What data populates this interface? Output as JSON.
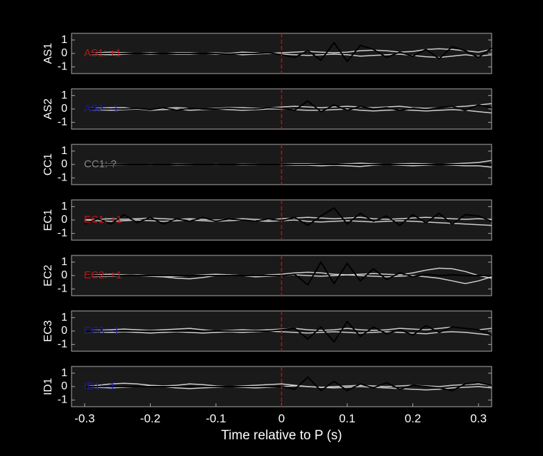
{
  "chart_data": [
    {
      "type": "line",
      "ylabel": "AS1",
      "annotation": "AS1: +1",
      "annotation_color": "#cc1111",
      "x": [
        -0.3,
        -0.28,
        -0.26,
        -0.24,
        -0.22,
        -0.2,
        -0.18,
        -0.16,
        -0.14,
        -0.12,
        -0.1,
        -0.08,
        -0.06,
        -0.04,
        -0.02,
        0,
        0.02,
        0.04,
        0.06,
        0.08,
        0.1,
        0.12,
        0.14,
        0.16,
        0.18,
        0.2,
        0.22,
        0.24,
        0.26,
        0.28,
        0.3,
        0.32
      ],
      "series": [
        {
          "color": "#d0d0d0",
          "values": [
            0,
            0.05,
            0.1,
            0.05,
            0,
            -0.05,
            0,
            0.05,
            0.05,
            0,
            -0.05,
            0,
            0.1,
            0.05,
            0,
            0.05,
            0.1,
            0.15,
            0.1,
            0.05,
            0.1,
            0.2,
            0.25,
            0.2,
            0.1,
            0.15,
            0.3,
            0.35,
            0.3,
            0.2,
            0.1,
            0.3
          ]
        },
        {
          "color": "#d0d0d0",
          "values": [
            0,
            -0.05,
            -0.1,
            -0.05,
            0,
            0.05,
            0,
            -0.05,
            -0.05,
            0,
            0.05,
            0,
            -0.1,
            -0.05,
            0,
            -0.05,
            -0.1,
            -0.15,
            -0.1,
            -0.05,
            -0.1,
            -0.2,
            -0.15,
            -0.1,
            -0.05,
            -0.15,
            -0.25,
            -0.3,
            -0.2,
            -0.1,
            -0.2,
            -0.1
          ]
        },
        {
          "color": "#000000",
          "values": [
            0,
            0,
            0,
            0,
            0,
            0,
            0,
            0,
            0,
            0,
            0,
            -0.05,
            0,
            0,
            0.05,
            -0.1,
            -0.3,
            0.2,
            -0.5,
            0.8,
            -0.6,
            0.6,
            0.3,
            -0.3,
            0.1,
            -0.2,
            0.3,
            -0.4,
            0.5,
            0.2,
            -0.3,
            0.4
          ]
        }
      ],
      "ylim": [
        -1.5,
        1.5
      ],
      "yticks": [
        -1,
        0,
        1
      ],
      "xlim": [
        -0.32,
        0.32
      ],
      "reference_x": 0,
      "reference_color": "#dd0000"
    },
    {
      "type": "line",
      "ylabel": "AS2",
      "annotation": "AS2: -1",
      "annotation_color": "#1a1aaa",
      "x": [
        -0.3,
        -0.28,
        -0.26,
        -0.24,
        -0.22,
        -0.2,
        -0.18,
        -0.16,
        -0.14,
        -0.12,
        -0.1,
        -0.08,
        -0.06,
        -0.04,
        -0.02,
        0,
        0.02,
        0.04,
        0.06,
        0.08,
        0.1,
        0.12,
        0.14,
        0.16,
        0.18,
        0.2,
        0.22,
        0.24,
        0.26,
        0.28,
        0.3,
        0.32
      ],
      "series": [
        {
          "color": "#d0d0d0",
          "values": [
            0,
            0.05,
            0.1,
            0.1,
            0,
            -0.05,
            0.05,
            0.1,
            0.05,
            0,
            0.05,
            0.1,
            0.1,
            0.05,
            0.1,
            0.15,
            0.2,
            0.15,
            0.1,
            0.15,
            0.2,
            0.15,
            0.1,
            0.15,
            0.2,
            0.1,
            0.05,
            0.1,
            0.15,
            0.2,
            0.3,
            0.4
          ]
        },
        {
          "color": "#d0d0d0",
          "values": [
            0,
            -0.05,
            -0.1,
            -0.05,
            0,
            -0.1,
            -0.05,
            0,
            -0.1,
            -0.05,
            0,
            -0.05,
            -0.1,
            -0.05,
            0,
            0,
            -0.05,
            -0.1,
            -0.1,
            -0.05,
            0,
            -0.1,
            -0.15,
            -0.1,
            -0.05,
            -0.1,
            -0.15,
            -0.1,
            -0.05,
            -0.1,
            -0.2,
            -0.3
          ]
        },
        {
          "color": "#000000",
          "values": [
            0,
            0,
            0,
            0,
            0.05,
            -0.05,
            0.1,
            -0.1,
            0.05,
            0,
            0,
            0.05,
            0,
            0,
            0.1,
            0.05,
            -0.1,
            0.6,
            -0.2,
            0.3,
            -0.1,
            0.2,
            0,
            0.1,
            -0.1,
            0.05,
            -0.05,
            0.1,
            0.2,
            -0.1,
            0.3,
            0.1
          ]
        }
      ],
      "ylim": [
        -1.5,
        1.5
      ],
      "yticks": [
        -1,
        0,
        1
      ],
      "xlim": [
        -0.32,
        0.32
      ],
      "reference_x": 0,
      "reference_color": "#dd0000"
    },
    {
      "type": "line",
      "ylabel": "CC1",
      "annotation": "CC1: ?",
      "annotation_color": "#888888",
      "x": [
        -0.3,
        -0.28,
        -0.26,
        -0.24,
        -0.22,
        -0.2,
        -0.18,
        -0.16,
        -0.14,
        -0.12,
        -0.1,
        -0.08,
        -0.06,
        -0.04,
        -0.02,
        0,
        0.02,
        0.04,
        0.06,
        0.08,
        0.1,
        0.12,
        0.14,
        0.16,
        0.18,
        0.2,
        0.22,
        0.24,
        0.26,
        0.28,
        0.3,
        0.32
      ],
      "series": [
        {
          "color": "#d0d0d0",
          "values": [
            0,
            0.02,
            0.03,
            0.02,
            0,
            -0.02,
            0,
            0.03,
            0.02,
            0,
            -0.02,
            0,
            0.03,
            0.02,
            0,
            0.02,
            0.05,
            0.05,
            0.02,
            0,
            0.05,
            0.1,
            0.05,
            0,
            0.05,
            0.08,
            0.05,
            0,
            0.05,
            0.1,
            0.15,
            0.3
          ]
        },
        {
          "color": "#d0d0d0",
          "values": [
            0,
            -0.02,
            -0.03,
            -0.02,
            0,
            0.02,
            0,
            -0.03,
            -0.02,
            0,
            0.02,
            0,
            -0.03,
            -0.02,
            0,
            -0.02,
            -0.05,
            -0.05,
            -0.1,
            -0.05,
            -0.1,
            -0.15,
            -0.05,
            0,
            -0.05,
            -0.1,
            -0.05,
            0,
            -0.05,
            -0.1,
            -0.1,
            -0.2
          ]
        },
        {
          "color": "#000000",
          "values": [
            0,
            0,
            0,
            0,
            0,
            0,
            0,
            0,
            0,
            0,
            0,
            0,
            0,
            0,
            0,
            0,
            0,
            0,
            0,
            0,
            0,
            0,
            0,
            0,
            0,
            0,
            0,
            0,
            0,
            0,
            0,
            0
          ]
        }
      ],
      "ylim": [
        -1.5,
        1.5
      ],
      "yticks": [
        -1,
        0,
        1
      ],
      "xlim": [
        -0.32,
        0.32
      ],
      "reference_x": 0,
      "reference_color": "#dd0000"
    },
    {
      "type": "line",
      "ylabel": "EC1",
      "annotation": "EC1: +1",
      "annotation_color": "#cc1111",
      "x": [
        -0.3,
        -0.28,
        -0.26,
        -0.24,
        -0.22,
        -0.2,
        -0.18,
        -0.16,
        -0.14,
        -0.12,
        -0.1,
        -0.08,
        -0.06,
        -0.04,
        -0.02,
        0,
        0.02,
        0.04,
        0.06,
        0.08,
        0.1,
        0.12,
        0.14,
        0.16,
        0.18,
        0.2,
        0.22,
        0.24,
        0.26,
        0.28,
        0.3,
        0.32
      ],
      "series": [
        {
          "color": "#d0d0d0",
          "values": [
            0,
            0.05,
            0.1,
            0.05,
            0.1,
            0.15,
            0.1,
            0.05,
            0.1,
            0.05,
            0,
            0.05,
            0.1,
            0.05,
            0,
            0.1,
            0.15,
            0.2,
            0.15,
            0.1,
            0.15,
            0.2,
            0.1,
            0.05,
            0.1,
            0.15,
            0.2,
            0.15,
            0.1,
            0.05,
            0.1,
            0.05
          ]
        },
        {
          "color": "#d0d0d0",
          "values": [
            0,
            -0.05,
            -0.1,
            -0.05,
            0,
            -0.05,
            -0.1,
            -0.05,
            0,
            -0.05,
            -0.1,
            -0.05,
            0,
            -0.05,
            -0.1,
            -0.05,
            0,
            -0.1,
            -0.15,
            -0.1,
            -0.05,
            -0.1,
            -0.15,
            -0.1,
            -0.05,
            -0.1,
            -0.15,
            -0.2,
            -0.25,
            -0.3,
            -0.35,
            -0.4
          ]
        },
        {
          "color": "#000000",
          "values": [
            -0.3,
            0.1,
            -0.3,
            0.4,
            -0.2,
            0.2,
            -0.3,
            0.1,
            -0.1,
            0.2,
            -0.1,
            0.1,
            0,
            -0.1,
            0.1,
            -0.05,
            0.2,
            -0.4,
            0.3,
            0.9,
            -0.3,
            0.5,
            -0.1,
            0.3,
            -0.4,
            0.4,
            -0.2,
            0.5,
            -0.3,
            0.4,
            0.3,
            -0.1
          ]
        }
      ],
      "ylim": [
        -1.5,
        1.5
      ],
      "yticks": [
        -1,
        0,
        1
      ],
      "xlim": [
        -0.32,
        0.32
      ],
      "reference_x": 0,
      "reference_color": "#dd0000"
    },
    {
      "type": "line",
      "ylabel": "EC2",
      "annotation": "EC2: +1",
      "annotation_color": "#cc1111",
      "x": [
        -0.3,
        -0.28,
        -0.26,
        -0.24,
        -0.22,
        -0.2,
        -0.18,
        -0.16,
        -0.14,
        -0.12,
        -0.1,
        -0.08,
        -0.06,
        -0.04,
        -0.02,
        0,
        0.02,
        0.04,
        0.06,
        0.08,
        0.1,
        0.12,
        0.14,
        0.16,
        0.18,
        0.2,
        0.22,
        0.24,
        0.26,
        0.28,
        0.3,
        0.32
      ],
      "series": [
        {
          "color": "#d0d0d0",
          "values": [
            0,
            0.05,
            0.1,
            0.05,
            0,
            -0.05,
            -0.1,
            -0.05,
            0,
            0.05,
            0.1,
            0.05,
            0,
            -0.05,
            0.05,
            0.1,
            0.2,
            0.25,
            0.2,
            0.1,
            0.05,
            0.1,
            0.15,
            0.1,
            0.05,
            0.2,
            0.4,
            0.55,
            0.5,
            0.3,
            0,
            -0.2
          ]
        },
        {
          "color": "#d0d0d0",
          "values": [
            0,
            -0.05,
            -0.05,
            0,
            0.05,
            0,
            -0.1,
            -0.2,
            -0.25,
            -0.15,
            0,
            0.05,
            0,
            -0.1,
            -0.05,
            0,
            0.05,
            0,
            -0.05,
            0,
            0.05,
            0,
            -0.05,
            -0.1,
            -0.05,
            0,
            -0.1,
            -0.2,
            -0.4,
            -0.6,
            -0.4,
            -0.1
          ]
        },
        {
          "color": "#000000",
          "values": [
            0,
            0,
            0,
            0,
            0,
            0,
            0,
            0,
            0,
            0,
            0,
            0,
            0,
            0,
            0,
            0,
            0.1,
            -0.7,
            1.0,
            -0.6,
            0.9,
            -0.4,
            0.5,
            -0.3,
            0.2,
            -0.1,
            0.1,
            0,
            0.05,
            0,
            0,
            0
          ]
        }
      ],
      "ylim": [
        -1.5,
        1.5
      ],
      "yticks": [
        -1,
        0,
        1
      ],
      "xlim": [
        -0.32,
        0.32
      ],
      "reference_x": 0,
      "reference_color": "#dd0000"
    },
    {
      "type": "line",
      "ylabel": "EC3",
      "annotation": "EC3: -1",
      "annotation_color": "#1a1aaa",
      "x": [
        -0.3,
        -0.28,
        -0.26,
        -0.24,
        -0.22,
        -0.2,
        -0.18,
        -0.16,
        -0.14,
        -0.12,
        -0.1,
        -0.08,
        -0.06,
        -0.04,
        -0.02,
        0,
        0.02,
        0.04,
        0.06,
        0.08,
        0.1,
        0.12,
        0.14,
        0.16,
        0.18,
        0.2,
        0.22,
        0.24,
        0.26,
        0.28,
        0.3,
        0.32
      ],
      "series": [
        {
          "color": "#d0d0d0",
          "values": [
            0,
            0.05,
            0.1,
            0.15,
            0.1,
            0.05,
            0.1,
            0.15,
            0.2,
            0.1,
            0,
            0.05,
            0.1,
            0.05,
            0.1,
            0.15,
            0.2,
            0.1,
            0.05,
            0.1,
            0.2,
            0.1,
            0.05,
            0.1,
            0.2,
            0.15,
            0.1,
            0.2,
            0.3,
            0.2,
            0.1,
            0.2
          ]
        },
        {
          "color": "#d0d0d0",
          "values": [
            0,
            -0.05,
            -0.1,
            -0.05,
            -0.1,
            -0.15,
            -0.1,
            -0.05,
            -0.1,
            -0.15,
            -0.1,
            -0.05,
            -0.1,
            -0.05,
            0,
            -0.05,
            -0.1,
            -0.15,
            -0.1,
            -0.05,
            -0.1,
            -0.15,
            -0.1,
            -0.05,
            -0.1,
            -0.15,
            -0.2,
            -0.1,
            -0.05,
            -0.1,
            -0.2,
            -0.3
          ]
        },
        {
          "color": "#000000",
          "values": [
            0,
            0,
            0,
            0,
            0,
            0,
            0,
            0,
            0,
            0,
            0,
            0,
            0,
            0,
            0,
            0.1,
            0.2,
            -0.6,
            0.3,
            -0.8,
            0.7,
            -0.4,
            0.3,
            -0.2,
            0.1,
            -0.3,
            0.4,
            -0.1,
            0.3,
            0.2,
            0.1,
            -0.3
          ]
        }
      ],
      "ylim": [
        -1.5,
        1.5
      ],
      "yticks": [
        -1,
        0,
        1
      ],
      "xlim": [
        -0.32,
        0.32
      ],
      "reference_x": 0,
      "reference_color": "#dd0000"
    },
    {
      "type": "line",
      "ylabel": "ID1",
      "annotation": "ID1: -1",
      "annotation_color": "#1a1aaa",
      "xlabel": "Time relative to P (s)",
      "x": [
        -0.3,
        -0.28,
        -0.26,
        -0.24,
        -0.22,
        -0.2,
        -0.18,
        -0.16,
        -0.14,
        -0.12,
        -0.1,
        -0.08,
        -0.06,
        -0.04,
        -0.02,
        0,
        0.02,
        0.04,
        0.06,
        0.08,
        0.1,
        0.12,
        0.14,
        0.16,
        0.18,
        0.2,
        0.22,
        0.24,
        0.26,
        0.28,
        0.3,
        0.32
      ],
      "series": [
        {
          "color": "#d0d0d0",
          "values": [
            0,
            0.1,
            0.2,
            0.25,
            0.2,
            0.1,
            0.05,
            0.1,
            0.2,
            0.15,
            0.05,
            0,
            0.05,
            0.1,
            0.15,
            0.2,
            0.1,
            0,
            -0.05,
            0,
            0.05,
            0.1,
            0.05,
            0,
            0.05,
            0.1,
            0.05,
            0,
            0.1,
            0.15,
            0.2,
            0.1
          ]
        },
        {
          "color": "#d0d0d0",
          "values": [
            0,
            -0.05,
            -0.1,
            -0.05,
            0,
            0.05,
            0,
            -0.1,
            -0.15,
            -0.1,
            -0.05,
            0,
            -0.05,
            -0.1,
            -0.05,
            0,
            0.05,
            0,
            -0.05,
            -0.1,
            -0.05,
            0,
            -0.05,
            -0.1,
            -0.15,
            -0.2,
            -0.25,
            -0.2,
            -0.1,
            -0.05,
            0,
            -0.1
          ]
        },
        {
          "color": "#000000",
          "values": [
            0,
            0,
            0,
            0,
            0,
            0,
            0,
            0,
            0,
            0,
            0,
            0,
            0,
            0,
            0,
            0,
            -0.2,
            0.7,
            -0.3,
            0.4,
            -0.3,
            0.2,
            -0.1,
            0.3,
            -0.2,
            0.1,
            0,
            -0.1,
            -0.3,
            0.2,
            0.3,
            0.1
          ]
        }
      ],
      "ylim": [
        -1.5,
        1.5
      ],
      "yticks": [
        -1,
        0,
        1
      ],
      "xlim": [
        -0.32,
        0.32
      ],
      "xticks": [
        -0.3,
        -0.2,
        -0.1,
        0,
        0.1,
        0.2,
        0.3
      ],
      "reference_x": 0,
      "reference_color": "#dd0000"
    }
  ]
}
